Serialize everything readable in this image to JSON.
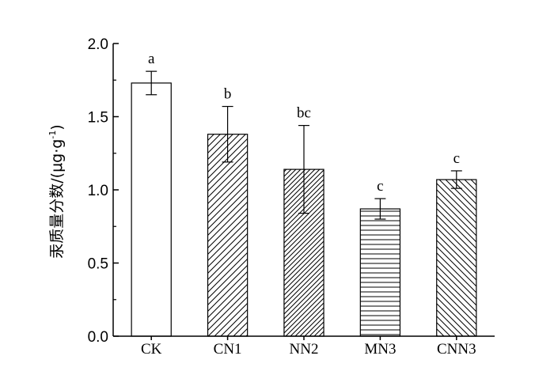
{
  "chart_data": {
    "type": "bar",
    "title": "",
    "xlabel": "",
    "ylabel": "汞质量分数/(μg·g⁻¹)",
    "ylabel_parts": {
      "main": "汞质量分数/(μg·g",
      "sup": "-1",
      "close": ")"
    },
    "ylim": [
      0,
      2.0
    ],
    "yticks": [
      {
        "value": 0.0,
        "label": "0.0"
      },
      {
        "value": 0.5,
        "label": "0.5"
      },
      {
        "value": 1.0,
        "label": "1.0"
      },
      {
        "value": 1.5,
        "label": "1.5"
      },
      {
        "value": 2.0,
        "label": "2.0"
      }
    ],
    "categories": [
      "CK",
      "CN1",
      "NN2",
      "MN3",
      "CNN3"
    ],
    "values": [
      1.73,
      1.38,
      1.14,
      0.87,
      1.07
    ],
    "errors": [
      0.08,
      0.19,
      0.3,
      0.07,
      0.06
    ],
    "significance": [
      "a",
      "b",
      "bc",
      "c",
      "c"
    ],
    "patterns": [
      "none",
      "diag-up",
      "diag-up-dense",
      "horizontal",
      "diag-down"
    ],
    "grid": false,
    "legend": "none"
  }
}
